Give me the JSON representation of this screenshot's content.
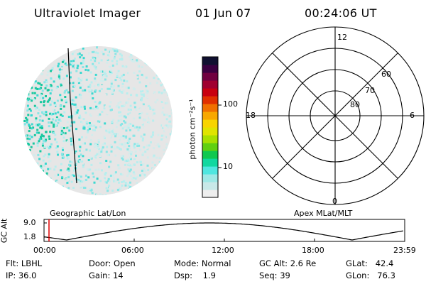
{
  "header": {
    "instrument": "Ultraviolet Imager",
    "date": "01 Jun 07",
    "time": "00:24:06 UT"
  },
  "colorbar": {
    "label": "photon cm⁻²s⁻¹",
    "ticks": [
      "100",
      "10"
    ],
    "colors": [
      "#eeeeee",
      "#c8e8e8",
      "#9ee8e6",
      "#4fe6e0",
      "#10d8a0",
      "#10c850",
      "#60d010",
      "#a8e000",
      "#e0e400",
      "#f8d400",
      "#f8a800",
      "#f07000",
      "#e03000",
      "#c80010",
      "#a00030",
      "#700040",
      "#3a0040",
      "#101030"
    ]
  },
  "image_panel": {
    "label": "Geographic Lat/Lon",
    "colors": [
      "#e6e6e6",
      "#d2ecec",
      "#b8eeee",
      "#88e6e6",
      "#3ad8d0",
      "#1ac8a0"
    ]
  },
  "polar_plot": {
    "label": "Apex MLat/MLT",
    "mlt_labels": [
      "12",
      "18",
      "6",
      "0"
    ],
    "mlat_labels": [
      "60",
      "70",
      "80"
    ]
  },
  "timeline": {
    "ylabel": "GC Alt",
    "yticks": [
      "9.0",
      "1.8"
    ],
    "xticks": [
      "00:00",
      "06:00",
      "12:00",
      "18:00",
      "23:59"
    ],
    "marker_color": "#e00000"
  },
  "info": {
    "filter": "Flt: LBHL",
    "ip": "IP: 36.0",
    "door": "Door: Open",
    "gain": "Gain: 14",
    "mode": "Mode: Normal",
    "dsp": "Dsp:    1.9",
    "gcalt": "GC Alt: 2.6 Re",
    "seq": "Seq: 39",
    "glat": "GLat:   42.4",
    "glon": "GLon:   76.3"
  }
}
